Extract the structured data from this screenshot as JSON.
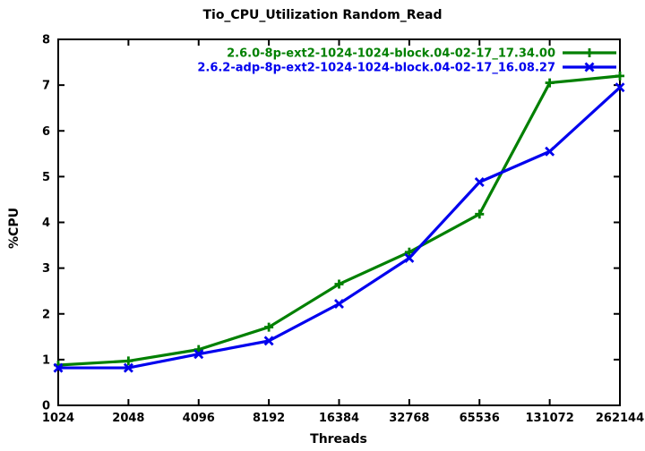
{
  "chart_data": {
    "type": "line",
    "title": "Tio_CPU_Utilization Random_Read",
    "xlabel": "Threads",
    "ylabel": "%CPU",
    "x_scale": "log2",
    "categories": [
      "1024",
      "2048",
      "4096",
      "8192",
      "16384",
      "32768",
      "65536",
      "131072",
      "262144"
    ],
    "yticks": [
      "0",
      "1",
      "2",
      "3",
      "4",
      "5",
      "6",
      "7",
      "8"
    ],
    "ylim": [
      0,
      8
    ],
    "grid": false,
    "legend_position": "top-right-inside",
    "frame_color": "#000000",
    "series": [
      {
        "name": "2.6.0-8p-ext2-1024-1024-block.04-02-17_17.34.00",
        "color": "#008000",
        "marker": "plus",
        "values": [
          0.88,
          0.97,
          1.22,
          1.71,
          2.65,
          3.35,
          4.18,
          7.05,
          7.2
        ]
      },
      {
        "name": "2.6.2-adp-8p-ext2-1024-1024-block.04-02-17_16.08.27",
        "color": "#0000ee",
        "marker": "cross",
        "values": [
          0.82,
          0.82,
          1.12,
          1.41,
          2.22,
          3.22,
          4.88,
          5.55,
          6.95
        ]
      }
    ]
  }
}
